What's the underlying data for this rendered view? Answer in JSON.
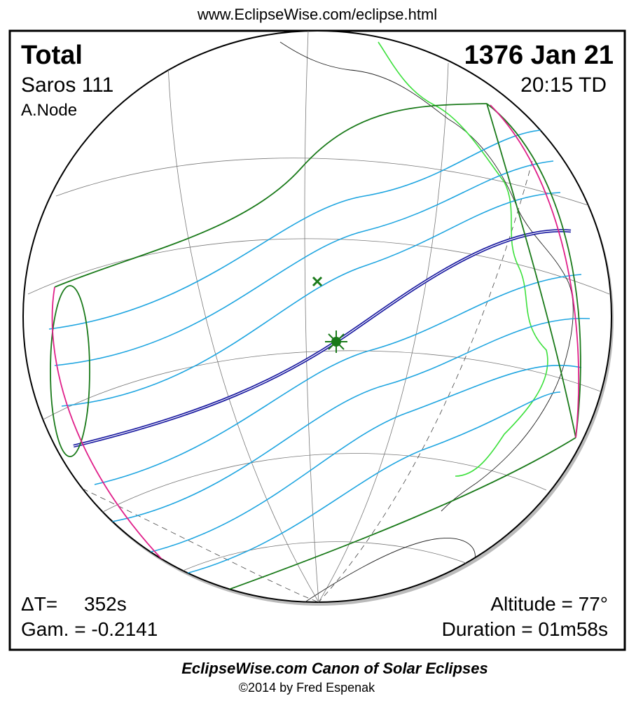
{
  "header": {
    "url": "www.EclipseWise.com/eclipse.html"
  },
  "eclipse": {
    "type": "Total",
    "date": "1376 Jan 21",
    "saros": "Saros 111",
    "time": "20:15 TD",
    "node": "A.Node",
    "delta_t_label": "ΔT=",
    "delta_t": "352s",
    "gamma": "Gam. = -0.2141",
    "altitude": "Altitude = 77°",
    "duration": "Duration = 01m58s"
  },
  "footer": {
    "title": "EclipseWise.com Canon of Solar Eclipses",
    "credit": "©2014 by Fred Espenak"
  }
}
